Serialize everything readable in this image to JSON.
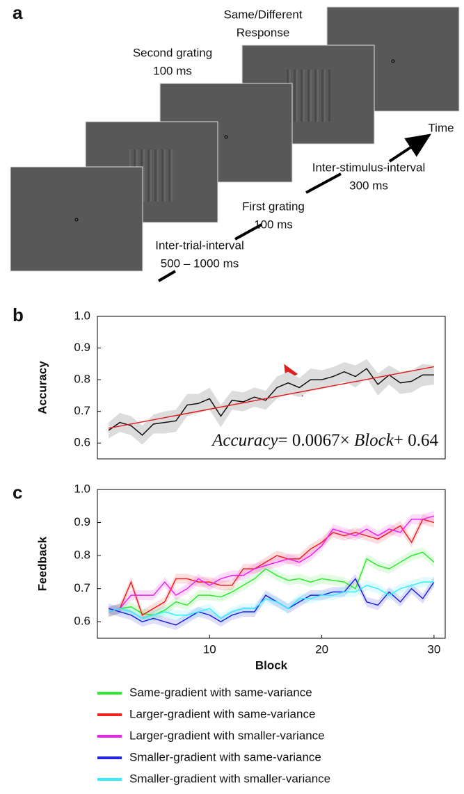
{
  "panel_a": {
    "label": "a",
    "steps": [
      {
        "lines": [
          "Same/Different",
          "Response"
        ]
      },
      {
        "lines": [
          "Second grating",
          "100 ms"
        ]
      },
      {
        "lines": [
          "Inter-stimulus-interval",
          "300 ms"
        ]
      },
      {
        "lines": [
          "First grating",
          "100 ms"
        ]
      },
      {
        "lines": [
          "Inter-trial-interval",
          "500 – 1000 ms"
        ]
      }
    ],
    "time": "Time"
  },
  "chart_data": [
    {
      "type": "line",
      "panel_label": "b",
      "ylabel": "Accuracy",
      "x": [
        1,
        2,
        3,
        4,
        5,
        6,
        7,
        8,
        9,
        10,
        11,
        12,
        13,
        14,
        15,
        16,
        17,
        18,
        19,
        20,
        21,
        22,
        23,
        24,
        25,
        26,
        27,
        28,
        29,
        30
      ],
      "xlim": [
        0,
        31
      ],
      "ylim": [
        0.55,
        1.0
      ],
      "yticks": [
        0.6,
        0.7,
        0.8,
        0.9,
        {
          "value": 1.0,
          "label": "1.0"
        }
      ],
      "series": [
        {
          "color": "#111111",
          "band_color": "#dcdcdc",
          "values": [
            0.64,
            0.665,
            0.655,
            0.625,
            0.66,
            0.665,
            0.67,
            0.72,
            0.725,
            0.74,
            0.685,
            0.735,
            0.73,
            0.745,
            0.735,
            0.775,
            0.79,
            0.775,
            0.8,
            0.8,
            0.81,
            0.825,
            0.81,
            0.835,
            0.785,
            0.815,
            0.79,
            0.795,
            0.815,
            0.815
          ],
          "error": [
            0.025,
            0.03,
            0.03,
            0.03,
            0.03,
            0.035,
            0.035,
            0.035,
            0.03,
            0.035,
            0.035,
            0.03,
            0.03,
            0.03,
            0.03,
            0.035,
            0.035,
            0.03,
            0.035,
            0.03,
            0.03,
            0.03,
            0.035,
            0.03,
            0.035,
            0.03,
            0.035,
            0.035,
            0.035,
            0.03
          ]
        }
      ],
      "fit": {
        "color": "#e02020",
        "x": [
          1,
          30
        ],
        "values": [
          0.6467,
          0.841
        ]
      },
      "annotation": [
        "Accuracy",
        "= 0.0067× ",
        "Block",
        "+ 0.64"
      ]
    },
    {
      "type": "line",
      "panel_label": "c",
      "ylabel": "Feedback",
      "xlabel": "Block",
      "x": [
        1,
        2,
        3,
        4,
        5,
        6,
        7,
        8,
        9,
        10,
        11,
        12,
        13,
        14,
        15,
        16,
        17,
        18,
        19,
        20,
        21,
        22,
        23,
        24,
        25,
        26,
        27,
        28,
        29,
        30
      ],
      "xlim": [
        0,
        31
      ],
      "ylim": [
        0.55,
        1.0
      ],
      "xticks": [
        10,
        20,
        30
      ],
      "yticks": [
        0.6,
        0.7,
        0.8,
        0.9,
        {
          "value": 1.0,
          "label": "1.0"
        }
      ],
      "band": 0.015,
      "series": [
        {
          "name": "Same-gradient with same-variance",
          "color": "#33e833",
          "values": [
            0.63,
            0.64,
            0.645,
            0.625,
            0.62,
            0.635,
            0.66,
            0.65,
            0.68,
            0.68,
            0.675,
            0.69,
            0.71,
            0.73,
            0.76,
            0.74,
            0.725,
            0.73,
            0.72,
            0.73,
            0.725,
            0.72,
            0.7,
            0.79,
            0.77,
            0.76,
            0.78,
            0.8,
            0.81,
            0.78
          ]
        },
        {
          "name": "Larger-gradient with same-variance",
          "color": "#ee2222",
          "values": [
            0.63,
            0.64,
            0.72,
            0.62,
            0.64,
            0.66,
            0.73,
            0.73,
            0.72,
            0.72,
            0.71,
            0.71,
            0.76,
            0.76,
            0.78,
            0.8,
            0.79,
            0.79,
            0.82,
            0.84,
            0.87,
            0.86,
            0.87,
            0.86,
            0.85,
            0.87,
            0.89,
            0.84,
            0.91,
            0.9
          ]
        },
        {
          "name": "Larger-gradient with smaller-variance",
          "color": "#ee22ee",
          "values": [
            0.63,
            0.64,
            0.68,
            0.68,
            0.68,
            0.72,
            0.68,
            0.7,
            0.73,
            0.71,
            0.73,
            0.74,
            0.74,
            0.76,
            0.77,
            0.78,
            0.79,
            0.78,
            0.8,
            0.83,
            0.88,
            0.87,
            0.86,
            0.88,
            0.86,
            0.88,
            0.87,
            0.91,
            0.91,
            0.92
          ]
        },
        {
          "name": "Smaller-gradient with same-variance",
          "color": "#2222dd",
          "values": [
            0.64,
            0.63,
            0.62,
            0.6,
            0.61,
            0.6,
            0.59,
            0.61,
            0.63,
            0.62,
            0.6,
            0.62,
            0.63,
            0.63,
            0.68,
            0.66,
            0.64,
            0.66,
            0.68,
            0.68,
            0.69,
            0.69,
            0.73,
            0.66,
            0.65,
            0.69,
            0.66,
            0.7,
            0.67,
            0.72
          ]
        },
        {
          "name": "Smaller-gradient with smaller-variance",
          "color": "#33eeff",
          "values": [
            0.63,
            0.64,
            0.63,
            0.61,
            0.62,
            0.63,
            0.62,
            0.62,
            0.63,
            0.64,
            0.61,
            0.63,
            0.64,
            0.64,
            0.67,
            0.66,
            0.64,
            0.67,
            0.67,
            0.68,
            0.68,
            0.69,
            0.69,
            0.71,
            0.7,
            0.68,
            0.7,
            0.71,
            0.72,
            0.72
          ]
        }
      ]
    }
  ]
}
